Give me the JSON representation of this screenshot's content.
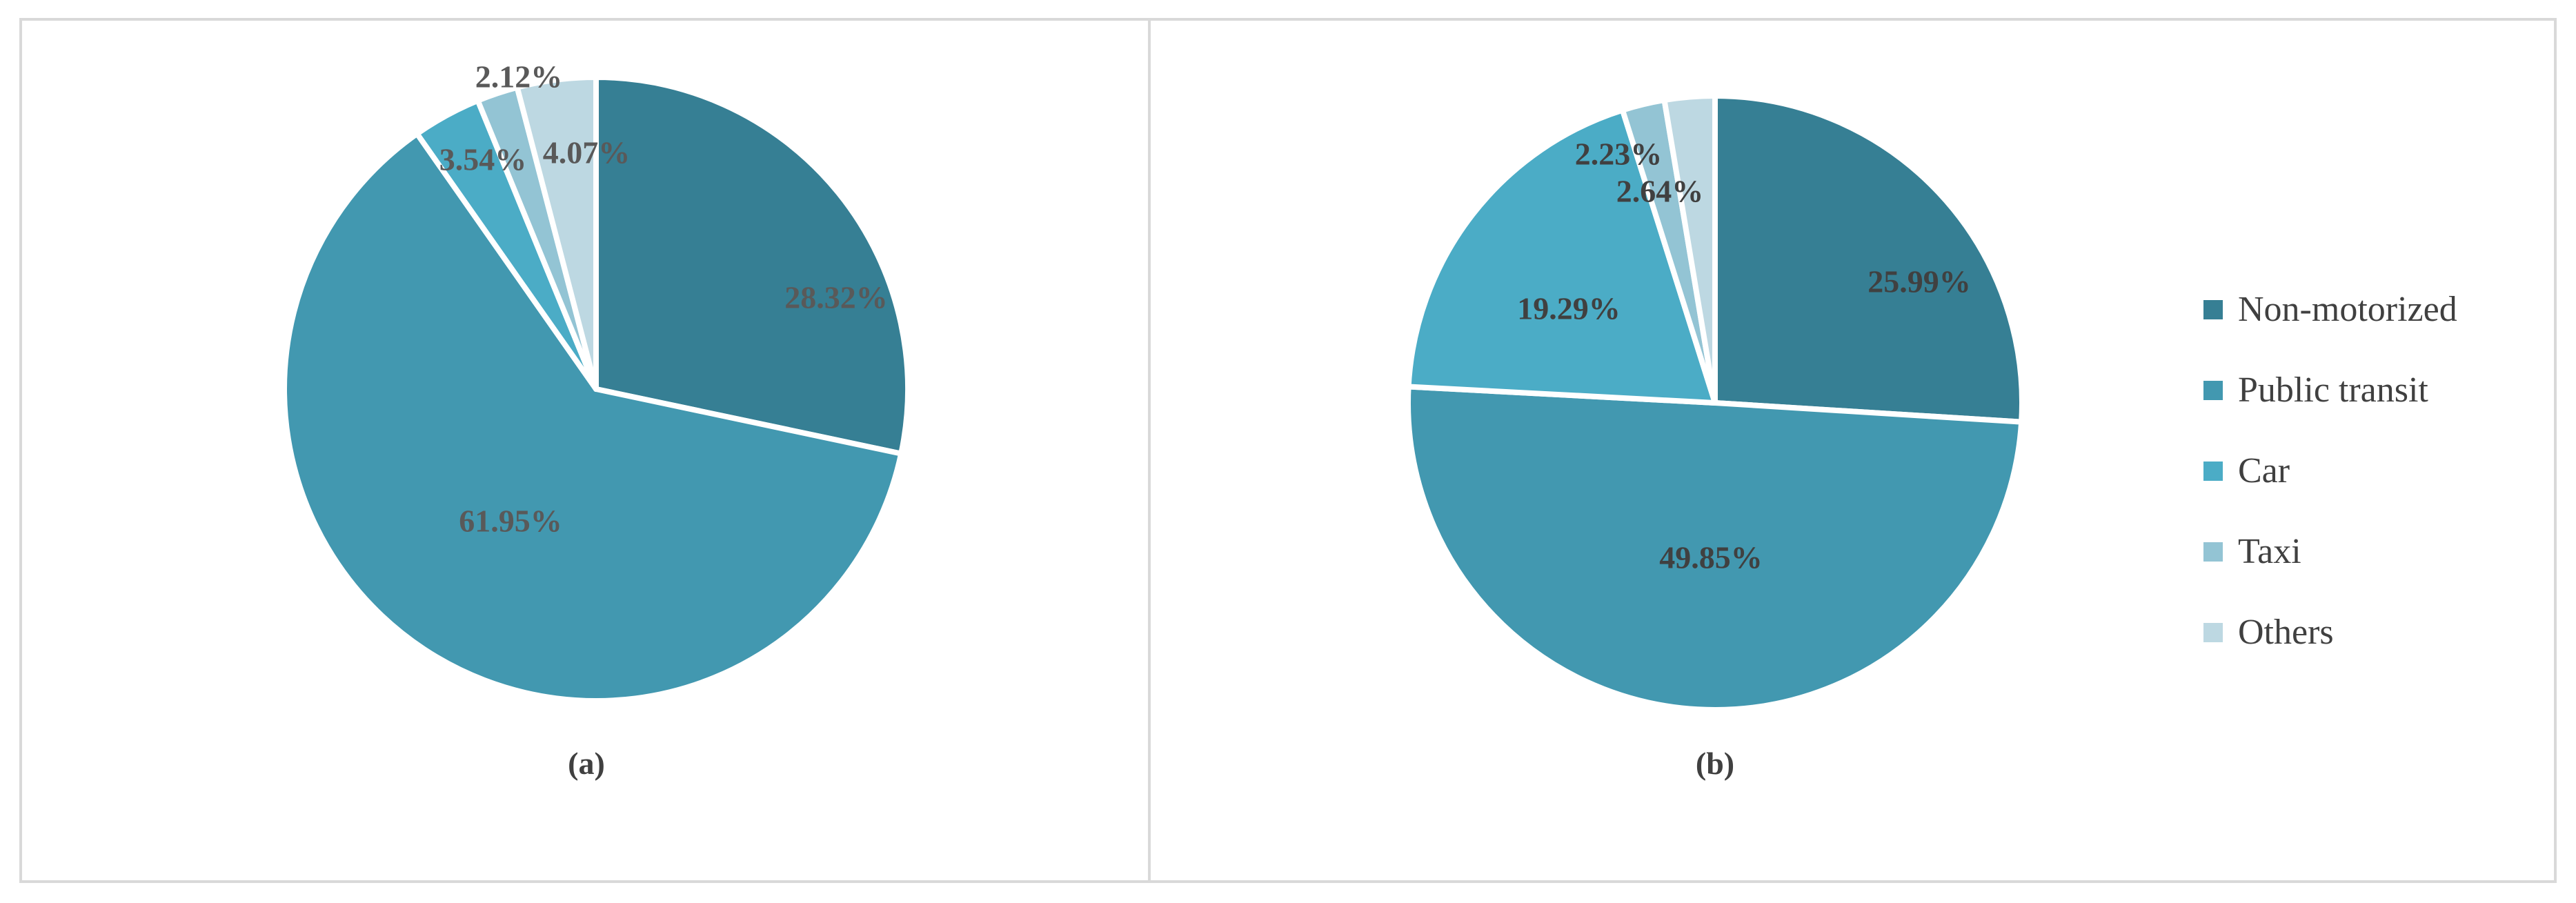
{
  "chart_data": [
    {
      "type": "pie",
      "caption": "(a)",
      "categories": [
        "Non-motorized",
        "Public transit",
        "Car",
        "Taxi",
        "Others"
      ],
      "values": [
        28.32,
        61.95,
        3.54,
        2.12,
        4.07
      ],
      "labels": [
        "28.32%",
        "61.95%",
        "3.54%",
        "2.12%",
        "4.07%"
      ],
      "label_color": "#595959"
    },
    {
      "type": "pie",
      "caption": "(b)",
      "categories": [
        "Non-motorized",
        "Public transit",
        "Car",
        "Taxi",
        "Others"
      ],
      "values": [
        25.99,
        49.85,
        19.29,
        2.23,
        2.64
      ],
      "labels": [
        "25.99%",
        "49.85%",
        "19.29%",
        "2.23%",
        "2.64%"
      ],
      "label_color": "#404040",
      "legend": {
        "position": "right",
        "entries": [
          "Non-motorized",
          "Public transit",
          "Car",
          "Taxi",
          "Others"
        ]
      }
    }
  ],
  "colors": [
    "#367F94",
    "#4298B0",
    "#4BACC6",
    "#93C4D4",
    "#BDD8E2"
  ]
}
